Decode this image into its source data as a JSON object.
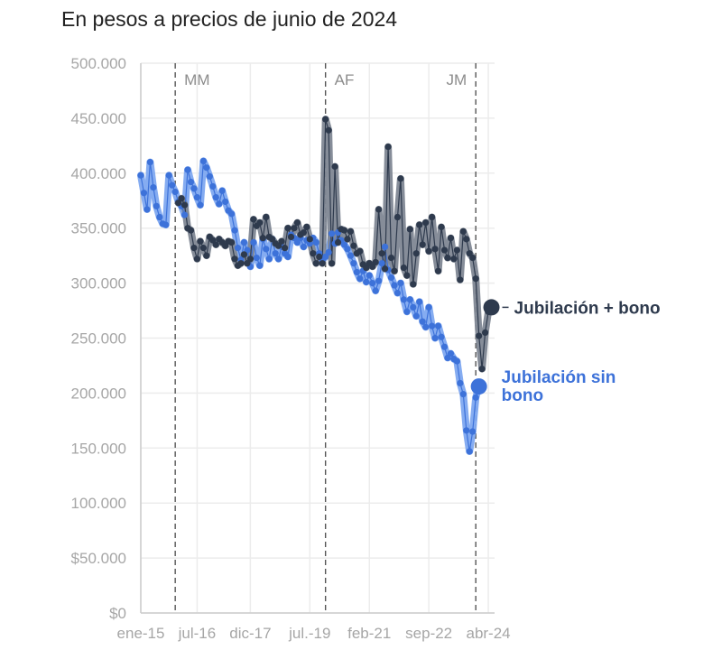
{
  "chart_data": {
    "type": "line",
    "title": "En pesos a precios de junio de 2024",
    "xlabel": "",
    "ylabel": "",
    "ylim": [
      0,
      500000
    ],
    "yticks": [
      {
        "value": 0,
        "label": "$0"
      },
      {
        "value": 50000,
        "label": "$50.000"
      },
      {
        "value": 100000,
        "label": "100.000"
      },
      {
        "value": 150000,
        "label": "150.000"
      },
      {
        "value": 200000,
        "label": "200.000"
      },
      {
        "value": 250000,
        "label": "250.000"
      },
      {
        "value": 300000,
        "label": "300.000"
      },
      {
        "value": 350000,
        "label": "350.000"
      },
      {
        "value": 400000,
        "label": "400.000"
      },
      {
        "value": 450000,
        "label": "450.000"
      },
      {
        "value": 500000,
        "label": "500.000"
      }
    ],
    "xticks": [
      {
        "date": "2015-01",
        "label": "ene-15"
      },
      {
        "date": "2016-07",
        "label": "jul-16"
      },
      {
        "date": "2017-12",
        "label": "dic-17"
      },
      {
        "date": "2019-07",
        "label": "jul.-19"
      },
      {
        "date": "2021-02",
        "label": "feb-21"
      },
      {
        "date": "2022-09",
        "label": "sep-22"
      },
      {
        "date": "2024-04",
        "label": "abr-24"
      }
    ],
    "xlim": [
      "2015-01",
      "2024-06"
    ],
    "grid": true,
    "periods": [
      {
        "label": "MM",
        "start": "2015-12"
      },
      {
        "label": "AF",
        "start": "2019-12"
      },
      {
        "label": "JM",
        "start": "2023-12"
      }
    ],
    "colors": {
      "con_bono": "#2e3a4d",
      "con_bono_band": "#7f8794",
      "sin_bono": "#3d72d9",
      "sin_bono_band": "#7ea8f0",
      "grid": "#ececec",
      "axis": "#cccccc",
      "period_line": "#555555"
    },
    "series": [
      {
        "name": "Jubilación + bono",
        "points": [
          [
            "2016-01",
            373000
          ],
          [
            "2016-02",
            377000
          ],
          [
            "2016-03",
            371000
          ],
          [
            "2016-04",
            350000
          ],
          [
            "2016-05",
            348000
          ],
          [
            "2016-06",
            332000
          ],
          [
            "2016-07",
            322000
          ],
          [
            "2016-08",
            338000
          ],
          [
            "2016-09",
            332000
          ],
          [
            "2016-10",
            325000
          ],
          [
            "2016-11",
            342000
          ],
          [
            "2016-12",
            339000
          ],
          [
            "2017-01",
            335000
          ],
          [
            "2017-02",
            340000
          ],
          [
            "2017-03",
            337000
          ],
          [
            "2017-04",
            334000
          ],
          [
            "2017-05",
            338000
          ],
          [
            "2017-06",
            337000
          ],
          [
            "2017-07",
            322000
          ],
          [
            "2017-08",
            316000
          ],
          [
            "2017-09",
            318000
          ],
          [
            "2017-10",
            326000
          ],
          [
            "2017-11",
            318000
          ],
          [
            "2017-12",
            322000
          ],
          [
            "2018-01",
            358000
          ],
          [
            "2018-02",
            352000
          ],
          [
            "2018-03",
            355000
          ],
          [
            "2018-04",
            341000
          ],
          [
            "2018-05",
            360000
          ],
          [
            "2018-06",
            342000
          ],
          [
            "2018-07",
            340000
          ],
          [
            "2018-08",
            336000
          ],
          [
            "2018-09",
            334000
          ],
          [
            "2018-10",
            338000
          ],
          [
            "2018-11",
            332000
          ],
          [
            "2018-12",
            350000
          ],
          [
            "2019-01",
            342000
          ],
          [
            "2019-02",
            350000
          ],
          [
            "2019-03",
            355000
          ],
          [
            "2019-04",
            344000
          ],
          [
            "2019-05",
            346000
          ],
          [
            "2019-06",
            351000
          ],
          [
            "2019-07",
            340000
          ],
          [
            "2019-08",
            327000
          ],
          [
            "2019-09",
            318000
          ],
          [
            "2019-10",
            324000
          ],
          [
            "2019-11",
            318000
          ],
          [
            "2019-12",
            449000
          ],
          [
            "2020-01",
            439000
          ],
          [
            "2020-02",
            318000
          ],
          [
            "2020-03",
            406000
          ],
          [
            "2020-04",
            337000
          ],
          [
            "2020-05",
            349000
          ],
          [
            "2020-06",
            348000
          ],
          [
            "2020-07",
            340000
          ],
          [
            "2020-08",
            347000
          ],
          [
            "2020-09",
            334000
          ],
          [
            "2020-10",
            327000
          ],
          [
            "2020-11",
            329000
          ],
          [
            "2020-12",
            317000
          ],
          [
            "2021-01",
            314000
          ],
          [
            "2021-02",
            318000
          ],
          [
            "2021-03",
            315000
          ],
          [
            "2021-04",
            319000
          ],
          [
            "2021-05",
            367000
          ],
          [
            "2021-06",
            327000
          ],
          [
            "2021-07",
            313000
          ],
          [
            "2021-08",
            424000
          ],
          [
            "2021-09",
            323000
          ],
          [
            "2021-10",
            311000
          ],
          [
            "2021-11",
            360000
          ],
          [
            "2021-12",
            395000
          ],
          [
            "2022-01",
            314000
          ],
          [
            "2022-02",
            307000
          ],
          [
            "2022-03",
            349000
          ],
          [
            "2022-04",
            299000
          ],
          [
            "2022-05",
            327000
          ],
          [
            "2022-06",
            353000
          ],
          [
            "2022-07",
            335000
          ],
          [
            "2022-08",
            355000
          ],
          [
            "2022-09",
            329000
          ],
          [
            "2022-10",
            360000
          ],
          [
            "2022-11",
            331000
          ],
          [
            "2022-12",
            311000
          ],
          [
            "2023-01",
            351000
          ],
          [
            "2023-02",
            330000
          ],
          [
            "2023-03",
            323000
          ],
          [
            "2023-04",
            341000
          ],
          [
            "2023-05",
            322000
          ],
          [
            "2023-06",
            330000
          ],
          [
            "2023-07",
            303000
          ],
          [
            "2023-08",
            347000
          ],
          [
            "2023-09",
            340000
          ],
          [
            "2023-10",
            327000
          ],
          [
            "2023-11",
            323000
          ],
          [
            "2023-12",
            304000
          ],
          [
            "2024-01",
            252000
          ],
          [
            "2024-02",
            222000
          ],
          [
            "2024-03",
            255000
          ],
          [
            "2024-04",
            274000
          ],
          [
            "2024-05",
            278000
          ]
        ]
      },
      {
        "name": "Jubilación sin bono",
        "points": [
          [
            "2015-01",
            398000
          ],
          [
            "2015-02",
            382000
          ],
          [
            "2015-03",
            367000
          ],
          [
            "2015-04",
            410000
          ],
          [
            "2015-05",
            387000
          ],
          [
            "2015-06",
            370000
          ],
          [
            "2015-07",
            360000
          ],
          [
            "2015-08",
            354000
          ],
          [
            "2015-09",
            353000
          ],
          [
            "2015-10",
            398000
          ],
          [
            "2015-11",
            389000
          ],
          [
            "2015-12",
            383000
          ],
          [
            "2016-01",
            374000
          ],
          [
            "2016-02",
            370000
          ],
          [
            "2016-03",
            362000
          ],
          [
            "2016-04",
            403000
          ],
          [
            "2016-05",
            392000
          ],
          [
            "2016-06",
            386000
          ],
          [
            "2016-07",
            378000
          ],
          [
            "2016-08",
            371000
          ],
          [
            "2016-09",
            411000
          ],
          [
            "2016-10",
            405000
          ],
          [
            "2016-11",
            397000
          ],
          [
            "2016-12",
            388000
          ],
          [
            "2017-01",
            378000
          ],
          [
            "2017-02",
            372000
          ],
          [
            "2017-03",
            384000
          ],
          [
            "2017-04",
            374000
          ],
          [
            "2017-05",
            366000
          ],
          [
            "2017-06",
            363000
          ],
          [
            "2017-07",
            348000
          ],
          [
            "2017-08",
            332000
          ],
          [
            "2017-09",
            321000
          ],
          [
            "2017-10",
            337000
          ],
          [
            "2017-11",
            330000
          ],
          [
            "2017-12",
            315000
          ],
          [
            "2018-01",
            337000
          ],
          [
            "2018-02",
            323000
          ],
          [
            "2018-03",
            316000
          ],
          [
            "2018-04",
            340000
          ],
          [
            "2018-05",
            331000
          ],
          [
            "2018-06",
            322000
          ],
          [
            "2018-07",
            340000
          ],
          [
            "2018-08",
            327000
          ],
          [
            "2018-09",
            322000
          ],
          [
            "2018-10",
            333000
          ],
          [
            "2018-11",
            327000
          ],
          [
            "2018-12",
            324000
          ],
          [
            "2019-01",
            344000
          ],
          [
            "2019-02",
            341000
          ],
          [
            "2019-03",
            337000
          ],
          [
            "2019-04",
            341000
          ],
          [
            "2019-05",
            333000
          ],
          [
            "2019-06",
            339000
          ],
          [
            "2019-07",
            336000
          ],
          [
            "2019-08",
            341000
          ],
          [
            "2019-09",
            337000
          ],
          [
            "2019-10",
            327000
          ],
          [
            "2019-11",
            321000
          ],
          [
            "2019-12",
            324000
          ],
          [
            "2020-01",
            328000
          ],
          [
            "2020-02",
            345000
          ],
          [
            "2020-03",
            336000
          ],
          [
            "2020-04",
            346000
          ],
          [
            "2020-05",
            339000
          ],
          [
            "2020-06",
            335000
          ],
          [
            "2020-07",
            331000
          ],
          [
            "2020-08",
            325000
          ],
          [
            "2020-09",
            318000
          ],
          [
            "2020-10",
            310000
          ],
          [
            "2020-11",
            304000
          ],
          [
            "2020-12",
            311000
          ],
          [
            "2021-01",
            301000
          ],
          [
            "2021-02",
            307000
          ],
          [
            "2021-03",
            300000
          ],
          [
            "2021-04",
            293000
          ],
          [
            "2021-05",
            302000
          ],
          [
            "2021-06",
            318000
          ],
          [
            "2021-07",
            333000
          ],
          [
            "2021-08",
            312000
          ],
          [
            "2021-09",
            305000
          ],
          [
            "2021-10",
            298000
          ],
          [
            "2021-11",
            291000
          ],
          [
            "2021-12",
            300000
          ],
          [
            "2022-01",
            285000
          ],
          [
            "2022-02",
            274000
          ],
          [
            "2022-03",
            285000
          ],
          [
            "2022-04",
            278000
          ],
          [
            "2022-05",
            270000
          ],
          [
            "2022-06",
            283000
          ],
          [
            "2022-07",
            265000
          ],
          [
            "2022-08",
            260000
          ],
          [
            "2022-09",
            278000
          ],
          [
            "2022-10",
            261000
          ],
          [
            "2022-11",
            250000
          ],
          [
            "2022-12",
            261000
          ],
          [
            "2023-01",
            251000
          ],
          [
            "2023-02",
            242000
          ],
          [
            "2023-03",
            232000
          ],
          [
            "2023-04",
            236000
          ],
          [
            "2023-05",
            231000
          ],
          [
            "2023-06",
            229000
          ],
          [
            "2023-07",
            209000
          ],
          [
            "2023-08",
            199000
          ],
          [
            "2023-09",
            166000
          ],
          [
            "2023-10",
            147000
          ],
          [
            "2023-11",
            165000
          ],
          [
            "2023-12",
            196000
          ],
          [
            "2024-01",
            206000
          ]
        ]
      }
    ]
  }
}
